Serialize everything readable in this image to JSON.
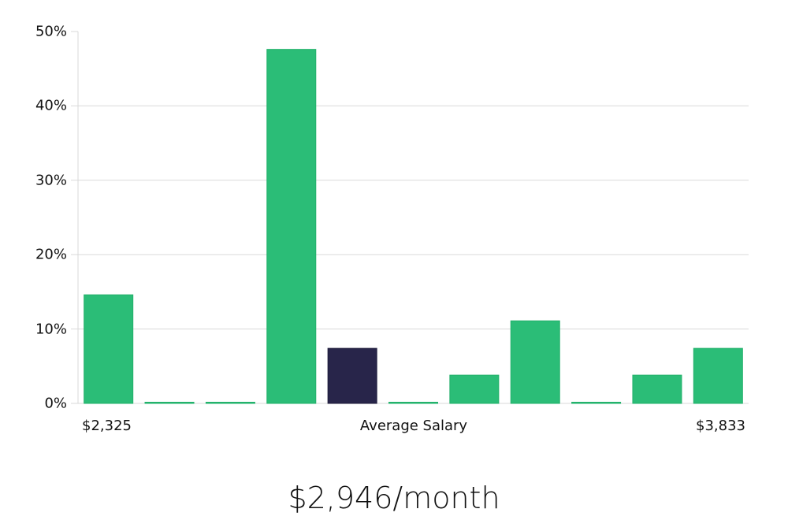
{
  "chart_data": {
    "type": "bar",
    "title": "$2,946/month",
    "xlabel": "Average Salary",
    "ylabel": "",
    "x_range_labels": {
      "min": "$2,325",
      "max": "$3,833"
    },
    "categories": [
      "bin1",
      "bin2",
      "bin3",
      "bin4",
      "bin5",
      "bin6",
      "bin7",
      "bin8",
      "bin9",
      "bin10",
      "bin11"
    ],
    "values": [
      14.6,
      0,
      0,
      47.6,
      7.4,
      0,
      3.8,
      11.1,
      0,
      3.8,
      7.4
    ],
    "highlight_index": 4,
    "ylim": [
      0,
      50
    ],
    "yticks": [
      "0%",
      "10%",
      "20%",
      "30%",
      "40%",
      "50%"
    ],
    "grid": true,
    "colors": {
      "bar": "#2bbd77",
      "bar_border": "#22b06a",
      "highlight": "#28254a",
      "grid": "#d9d9d9"
    }
  }
}
